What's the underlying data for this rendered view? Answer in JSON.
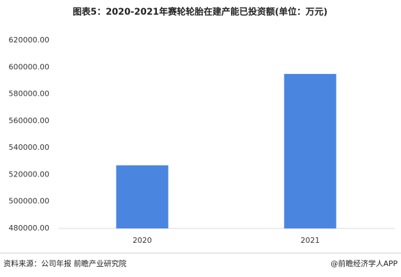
{
  "chart_data": {
    "type": "bar",
    "title": "图表5：2020-2021年赛轮轮胎在建产能已投资额(单位：万元)",
    "categories": [
      "2020",
      "2021"
    ],
    "values": [
      527000,
      595000
    ],
    "color": "#4a86e0",
    "ylim": [
      480000,
      620000
    ],
    "yticks": [
      {
        "value": 480000,
        "label": "480000.00"
      },
      {
        "value": 500000,
        "label": "500000.00"
      },
      {
        "value": 520000,
        "label": "520000.00"
      },
      {
        "value": 540000,
        "label": "540000.00"
      },
      {
        "value": 560000,
        "label": "560000.00"
      },
      {
        "value": 580000,
        "label": "580000.00"
      },
      {
        "value": 600000,
        "label": "600000.00"
      },
      {
        "value": 620000,
        "label": "620000.00"
      }
    ],
    "grid": false,
    "source": "资料来源：公司年报 前瞻产业研究院",
    "credit": "@前瞻经济学人APP"
  }
}
